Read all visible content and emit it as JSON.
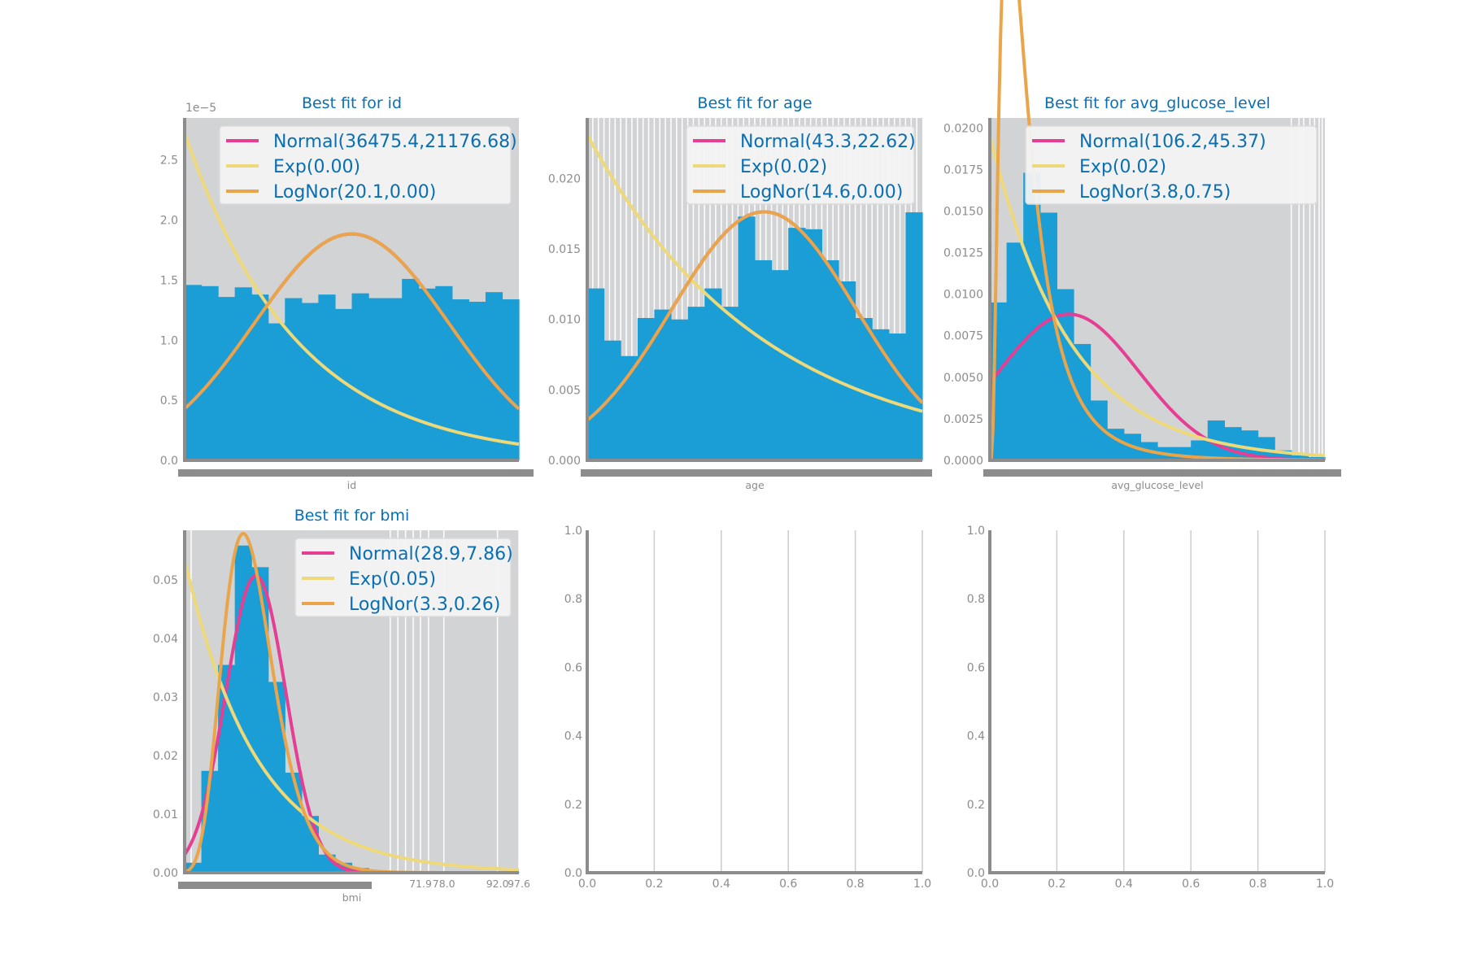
{
  "colors": {
    "panel_bg": "#d2d3d5",
    "bar": "#1a9ed5",
    "normal": "#e53e92",
    "exp": "#edd87a",
    "lognorm": "#eaa54a",
    "axis": "#8c8c8c",
    "title": "#0a6fb2",
    "grid": "#ffffff",
    "empty_grid": "#cccccc"
  },
  "chart_data": [
    {
      "type": "bar",
      "title": "Best fit for id",
      "xlabel": "id",
      "ylabel": "",
      "offset_label": "1e−5",
      "xlim": [
        67,
        72940
      ],
      "ylim": [
        0,
        2.85e-05
      ],
      "yticks": [
        0,
        5e-06,
        1e-05,
        1.5e-05,
        2e-05,
        2.5e-05
      ],
      "ytick_labels": [
        "0.0",
        "0.5",
        "1.0",
        "1.5",
        "2.0",
        "2.5"
      ],
      "histogram": {
        "bin_edges": [
          67,
          3711,
          7355,
          10999,
          14643,
          18287,
          21931,
          25575,
          29219,
          32863,
          36507,
          40151,
          43795,
          47439,
          51083,
          54727,
          58371,
          62015,
          65659,
          69303,
          72940
        ],
        "density": [
          1.46e-05,
          1.45e-05,
          1.36e-05,
          1.44e-05,
          1.38e-05,
          1.14e-05,
          1.35e-05,
          1.31e-05,
          1.38e-05,
          1.26e-05,
          1.39e-05,
          1.35e-05,
          1.35e-05,
          1.51e-05,
          1.43e-05,
          1.45e-05,
          1.34e-05,
          1.32e-05,
          1.4e-05,
          1.34e-05
        ]
      },
      "series": [
        {
          "name": "Normal(36475.4,21176.68)",
          "dist": "normal",
          "params": [
            36475.4,
            21176.68
          ]
        },
        {
          "name": "Exp(0.00)",
          "dist": "exp",
          "params": [
            2.73e-05,
            4.13e-05
          ]
        },
        {
          "name": "LogNor(20.1,0.00)",
          "dist": "normal",
          "params": [
            36475.4,
            21176.68
          ]
        }
      ],
      "legend": "upper right"
    },
    {
      "type": "bar",
      "title": "Best fit for age",
      "xlabel": "age",
      "ylabel": "",
      "xlim": [
        0.08,
        82
      ],
      "ylim": [
        0,
        0.0243
      ],
      "yticks": [
        0,
        0.005,
        0.01,
        0.015,
        0.02
      ],
      "ytick_labels": [
        "0.000",
        "0.005",
        "0.010",
        "0.015",
        "0.020"
      ],
      "histogram": {
        "bin_edges": [
          0.08,
          4.18,
          8.27,
          12.37,
          16.46,
          20.56,
          24.66,
          28.75,
          32.85,
          36.94,
          41.04,
          45.14,
          49.23,
          53.33,
          57.42,
          61.52,
          65.62,
          69.71,
          73.81,
          77.9,
          82.0
        ],
        "density": [
          0.0122,
          0.0085,
          0.0074,
          0.0101,
          0.0107,
          0.01,
          0.0109,
          0.0122,
          0.0109,
          0.0173,
          0.0142,
          0.0135,
          0.0165,
          0.0164,
          0.0142,
          0.0127,
          0.0101,
          0.0093,
          0.009,
          0.0176
        ]
      },
      "series": [
        {
          "name": "Normal(43.3,22.62)",
          "dist": "normal",
          "params": [
            43.3,
            22.62
          ]
        },
        {
          "name": "Exp(0.02)",
          "dist": "exp",
          "params": [
            0.0231,
            0.0231
          ]
        },
        {
          "name": "LogNor(14.6,0.00)",
          "dist": "normal",
          "params": [
            43.3,
            22.62
          ]
        }
      ],
      "legend": "upper right"
    },
    {
      "type": "bar",
      "title": "Best fit for avg_glucose_level",
      "xlabel": "avg_glucose_level",
      "ylabel": "",
      "xlim": [
        55.12,
        271.74
      ],
      "ylim": [
        0,
        0.0206
      ],
      "yticks": [
        0,
        0.0025,
        0.005,
        0.0075,
        0.01,
        0.0125,
        0.015,
        0.0175,
        0.02
      ],
      "ytick_labels": [
        "0.0000",
        "0.0025",
        "0.0050",
        "0.0075",
        "0.0100",
        "0.0125",
        "0.0150",
        "0.0175",
        "0.0200"
      ],
      "histogram": {
        "bin_edges": [
          55.12,
          65.95,
          76.78,
          87.61,
          98.44,
          109.27,
          120.1,
          130.93,
          141.76,
          152.6,
          163.43,
          174.26,
          185.09,
          195.92,
          206.75,
          217.58,
          228.41,
          239.24,
          250.08,
          260.91,
          271.74
        ],
        "density": [
          0.0095,
          0.0131,
          0.0173,
          0.0149,
          0.0103,
          0.007,
          0.0036,
          0.0019,
          0.0016,
          0.0011,
          0.0008,
          0.0008,
          0.0012,
          0.0024,
          0.002,
          0.0018,
          0.0014,
          0.0006,
          0.0003,
          0.0002
        ]
      },
      "series": [
        {
          "name": "Normal(106.2,45.37)",
          "dist": "normal",
          "params": [
            106.2,
            45.37
          ]
        },
        {
          "name": "Exp(0.02)",
          "dist": "exp",
          "params": [
            0.0196,
            0.0196
          ]
        },
        {
          "name": "LogNor(3.8,0.75)",
          "dist": "shifted_lognorm",
          "params": [
            55.12,
            3.05,
            0.75
          ]
        }
      ],
      "legend": "upper right"
    },
    {
      "type": "bar",
      "title": "Best fit for bmi",
      "xlabel": "bmi",
      "ylabel": "",
      "xlim": [
        10.3,
        97.6
      ],
      "ylim": [
        0,
        0.0585
      ],
      "yticks": [
        0,
        0.01,
        0.02,
        0.03,
        0.04,
        0.05
      ],
      "ytick_labels": [
        "0.00",
        "0.01",
        "0.02",
        "0.03",
        "0.04",
        "0.05"
      ],
      "xtick_labels": [
        "71.9",
        "78.0",
        "92.0",
        "97.6"
      ],
      "histogram": {
        "bin_edges": [
          10.3,
          14.67,
          19.03,
          23.4,
          27.76,
          32.13,
          36.49,
          40.86,
          45.22,
          49.59,
          53.95,
          58.32,
          62.68,
          67.05,
          71.41,
          75.78,
          80.14,
          84.51,
          88.87,
          93.24,
          97.6
        ],
        "density": [
          0.0017,
          0.0174,
          0.0355,
          0.0559,
          0.0522,
          0.0326,
          0.0171,
          0.0097,
          0.0031,
          0.0017,
          0.0008,
          0.0003,
          0.0002,
          0.0001,
          0.0001,
          0.0001,
          0,
          0,
          0,
          0.0001
        ]
      },
      "series": [
        {
          "name": "Normal(28.9,7.86)",
          "dist": "normal",
          "params": [
            28.9,
            7.86
          ]
        },
        {
          "name": "Exp(0.05)",
          "dist": "exp",
          "params": [
            0.0536,
            0.0536
          ]
        },
        {
          "name": "LogNor(3.3,0.26)",
          "dist": "lognorm",
          "params": [
            3.31,
            0.26
          ]
        }
      ],
      "legend": "upper right"
    },
    {
      "type": "empty",
      "xlim": [
        0,
        1
      ],
      "ylim": [
        0,
        1
      ],
      "tick_labels": [
        "0.0",
        "0.2",
        "0.4",
        "0.6",
        "0.8",
        "1.0"
      ]
    },
    {
      "type": "empty",
      "xlim": [
        0,
        1
      ],
      "ylim": [
        0,
        1
      ],
      "tick_labels": [
        "0.0",
        "0.2",
        "0.4",
        "0.6",
        "0.8",
        "1.0"
      ]
    }
  ]
}
